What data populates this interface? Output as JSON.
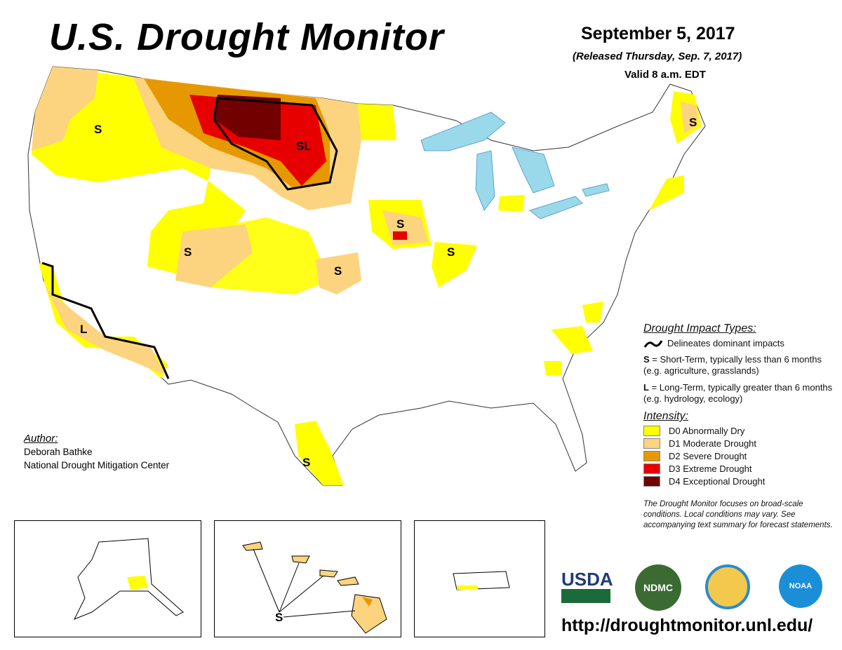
{
  "header": {
    "title": "U.S. Drought Monitor",
    "date": "September 5, 2017",
    "released": "(Released Thursday, Sep. 7, 2017)",
    "valid": "Valid 8 a.m. EDT"
  },
  "map_labels": {
    "s": "S",
    "l": "L",
    "sl": "SL"
  },
  "legend": {
    "impact_heading": "Drought Impact Types:",
    "delineates": "Delineates dominant impacts",
    "s_key": "S",
    "s_text": " = Short-Term, typically less than 6 months (e.g. agriculture, grasslands)",
    "l_key": "L",
    "l_text": " = Long-Term, typically greater than 6 months (e.g. hydrology, ecology)",
    "intensity_heading": "Intensity:",
    "levels": [
      {
        "label": "D0 Abnormally Dry",
        "color": "#ffff00"
      },
      {
        "label": "D1 Moderate Drought",
        "color": "#fcd37f"
      },
      {
        "label": "D2 Severe Drought",
        "color": "#e69800"
      },
      {
        "label": "D3 Extreme Drought",
        "color": "#e60000"
      },
      {
        "label": "D4 Exceptional Drought",
        "color": "#730000"
      }
    ],
    "note": "The Drought Monitor focuses on broad-scale conditions. Local conditions may vary. See accompanying text summary for forecast statements."
  },
  "author": {
    "heading": "Author:",
    "name": "Deborah Bathke",
    "org": "National Drought Mitigation Center"
  },
  "logos": {
    "usda": "USDA",
    "ndmc": "NDMC",
    "noaa": "NOAA"
  },
  "url": "http://droughtmonitor.unl.edu/"
}
